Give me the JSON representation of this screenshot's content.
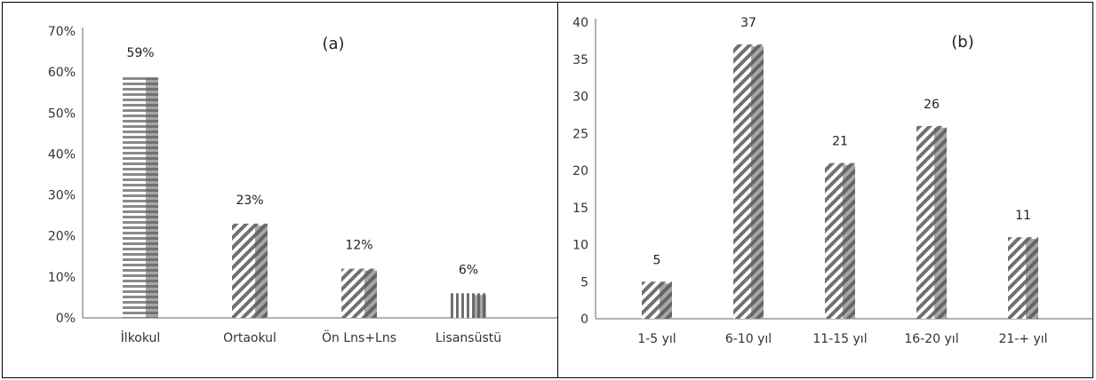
{
  "chart_data": [
    {
      "type": "bar",
      "panel_label": "(a)",
      "categories": [
        "İlkokul",
        "Ortaokul",
        "Ön Lns+Lns",
        "Lisansüstü"
      ],
      "values": [
        59,
        23,
        12,
        6
      ],
      "data_labels": [
        "59%",
        "23%",
        "12%",
        "6%"
      ],
      "yticks": [
        "0%",
        "10%",
        "20%",
        "30%",
        "40%",
        "50%",
        "60%",
        "70%"
      ],
      "ylim": [
        0,
        70
      ],
      "xlabel": "",
      "ylabel": "",
      "grid": false,
      "patterns": [
        "horizontal",
        "diagonal",
        "diagonal",
        "vertical"
      ]
    },
    {
      "type": "bar",
      "panel_label": "(b)",
      "categories": [
        "1-5 yıl",
        "6-10 yıl",
        "11-15 yıl",
        "16-20 yıl",
        "21-+ yıl"
      ],
      "values": [
        5,
        37,
        21,
        26,
        11
      ],
      "data_labels": [
        "5",
        "37",
        "21",
        "26",
        "11"
      ],
      "yticks": [
        "0",
        "5",
        "10",
        "15",
        "20",
        "25",
        "30",
        "35",
        "40"
      ],
      "ylim": [
        0,
        40
      ],
      "xlabel": "",
      "ylabel": "",
      "grid": false,
      "patterns": [
        "diagonal",
        "diagonal",
        "diagonal",
        "diagonal",
        "diagonal"
      ]
    }
  ]
}
